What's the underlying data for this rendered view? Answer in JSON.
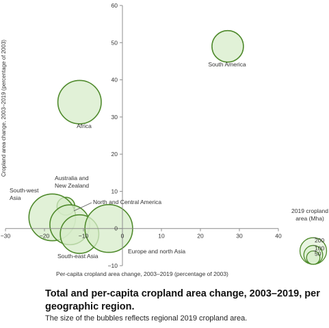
{
  "chart_data": {
    "type": "bubble",
    "xlabel": "Per-capita cropland area change, 2003–2019 (percentage of 2003)",
    "ylabel": "Cropland area change, 2003–2019 (percentage of 2003)",
    "xlim": [
      -30,
      40
    ],
    "ylim": [
      -10,
      60
    ],
    "xticks": [
      "−30",
      "−20",
      "−10",
      "0",
      "10",
      "20",
      "30",
      "40"
    ],
    "yticks": [
      "−10",
      "0",
      "10",
      "20",
      "30",
      "40",
      "50",
      "60"
    ],
    "grid": false,
    "bubbles": [
      {
        "label": "South America",
        "x": 27,
        "y": 49,
        "size": 100,
        "label_lines": [
          "South America"
        ]
      },
      {
        "label": "Africa",
        "x": -11,
        "y": 34,
        "size": 190,
        "label_lines": [
          "Africa"
        ]
      },
      {
        "label": "Australia and New Zealand",
        "x": -14.5,
        "y": 6,
        "size": 32,
        "label_lines": [
          "Australia and",
          "New Zealand"
        ]
      },
      {
        "label": "South-west Asia",
        "x": -18,
        "y": 3,
        "size": 220,
        "label_lines": [
          "South-west",
          "Asia"
        ]
      },
      {
        "label": "North and Central America",
        "x": -13.5,
        "y": 1,
        "size": 160,
        "label_lines": [
          "North and Central America"
        ]
      },
      {
        "label": "South-east Asia",
        "x": -11,
        "y": -1.5,
        "size": 150,
        "label_lines": [
          "South-east Asia"
        ]
      },
      {
        "label": "Europe and north Asia",
        "x": -3.5,
        "y": 0,
        "size": 230,
        "label_lines": [
          "Europe and north Asia"
        ]
      }
    ],
    "size_legend": {
      "title_lines": [
        "2019 cropland",
        "area (Mha)"
      ],
      "values": [
        200,
        100,
        50
      ]
    },
    "colors": {
      "bubble_fill": "#d7ecca",
      "bubble_stroke": "#4f8a2c",
      "axis": "#8c8c8c"
    }
  },
  "caption": {
    "title": "Total and per-capita cropland area change, 2003–2019, per geographic region.",
    "subtitle": "The size of the bubbles reflects regional 2019 cropland area."
  }
}
